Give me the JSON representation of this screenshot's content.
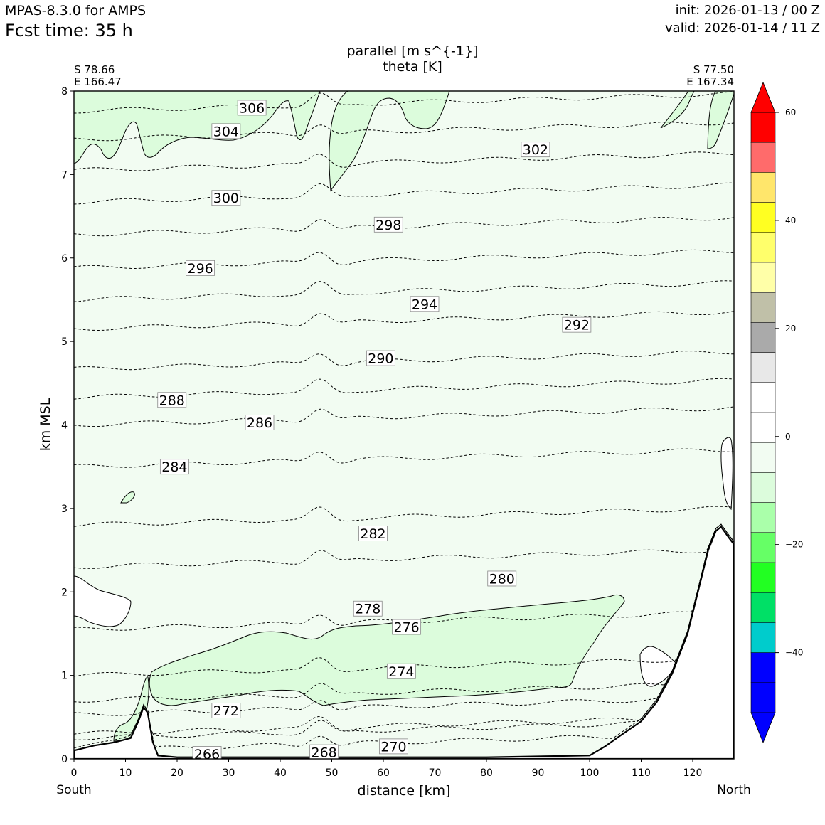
{
  "header": {
    "model": "MPAS-8.3.0 for AMPS",
    "fcst_time": "Fcst time:   35 h",
    "init": "init: 2026-01-13 / 00 Z",
    "valid": "valid: 2026-01-14 / 11 Z"
  },
  "chart_data": {
    "type": "contour",
    "title_line1": "parallel [m s^{-1}]",
    "title_line2": "theta [K]",
    "xlabel": "distance [km]",
    "ylabel": "km MSL",
    "xlim": [
      0,
      128
    ],
    "ylim": [
      0,
      8
    ],
    "x_ticks": [
      0,
      10,
      20,
      30,
      40,
      50,
      60,
      70,
      80,
      90,
      100,
      110,
      120
    ],
    "y_ticks": [
      0,
      1,
      2,
      3,
      4,
      5,
      6,
      7,
      8
    ],
    "start_point": {
      "lat": "S 78.66",
      "lon": "E 166.47"
    },
    "end_point": {
      "lat": "S 77.50",
      "lon": "E 167.34"
    },
    "left_end_label": "South",
    "right_end_label": "North",
    "theta_isentropes": [
      {
        "value": 266,
        "y_at_start": 0.1,
        "label_x": 25.8,
        "label_y": 0.06
      },
      {
        "value": 268,
        "y_at_start": 0.25,
        "label_x": 48.5,
        "label_y": 0.08
      },
      {
        "value": 270,
        "y_at_start": 0.3,
        "label_x": 62.0,
        "label_y": 0.15
      },
      {
        "value": 272,
        "y_at_start": 0.53,
        "label_x": 29.5,
        "label_y": 0.58
      },
      {
        "value": 274,
        "y_at_start": 0.7,
        "label_x": 63.5,
        "label_y": 1.05
      },
      {
        "value": 276,
        "y_at_start": 1.0,
        "label_x": 64.5,
        "label_y": 1.58
      },
      {
        "value": 278,
        "y_at_start": 1.55,
        "label_x": 57.0,
        "label_y": 1.8
      },
      {
        "value": 280,
        "y_at_start": 2.3,
        "label_x": 83.0,
        "label_y": 2.16
      },
      {
        "value": 282,
        "y_at_start": 2.8,
        "label_x": 58.0,
        "label_y": 2.7
      },
      {
        "value": 284,
        "y_at_start": 3.5,
        "label_x": 19.5,
        "label_y": 3.5
      },
      {
        "value": 286,
        "y_at_start": 4.0,
        "label_x": 36.0,
        "label_y": 4.03
      },
      {
        "value": 288,
        "y_at_start": 4.33,
        "label_x": 19.0,
        "label_y": 4.3
      },
      {
        "value": 290,
        "y_at_start": 4.67,
        "label_x": 59.5,
        "label_y": 4.8
      },
      {
        "value": 292,
        "y_at_start": 5.15,
        "label_x": 97.5,
        "label_y": 5.2
      },
      {
        "value": 294,
        "y_at_start": 5.5,
        "label_x": 68.0,
        "label_y": 5.45
      },
      {
        "value": 296,
        "y_at_start": 5.88,
        "label_x": 24.5,
        "label_y": 5.88
      },
      {
        "value": 298,
        "y_at_start": 6.28,
        "label_x": 61.0,
        "label_y": 6.4
      },
      {
        "value": 300,
        "y_at_start": 6.67,
        "label_x": 29.5,
        "label_y": 6.72
      },
      {
        "value": 302,
        "y_at_start": 7.05,
        "label_x": 89.5,
        "label_y": 7.3
      },
      {
        "value": 304,
        "y_at_start": 7.42,
        "label_x": 29.5,
        "label_y": 7.52
      },
      {
        "value": 306,
        "y_at_start": 7.76,
        "label_x": 34.5,
        "label_y": 7.8
      }
    ],
    "terrain": [
      [
        0,
        0.1
      ],
      [
        4,
        0.16
      ],
      [
        8,
        0.2
      ],
      [
        11,
        0.25
      ],
      [
        12.5,
        0.45
      ],
      [
        13.5,
        0.62
      ],
      [
        14.3,
        0.55
      ],
      [
        15.3,
        0.2
      ],
      [
        16.3,
        0.04
      ],
      [
        20,
        0.02
      ],
      [
        40,
        0.02
      ],
      [
        60,
        0.02
      ],
      [
        80,
        0.02
      ],
      [
        100,
        0.04
      ],
      [
        103,
        0.15
      ],
      [
        106,
        0.28
      ],
      [
        110,
        0.45
      ],
      [
        113,
        0.68
      ],
      [
        116,
        1.02
      ],
      [
        119,
        1.5
      ],
      [
        121,
        2.0
      ],
      [
        123,
        2.5
      ],
      [
        124.5,
        2.73
      ],
      [
        125.5,
        2.78
      ],
      [
        127,
        2.65
      ],
      [
        128,
        2.57
      ]
    ],
    "colorbar": {
      "ticks": [
        60,
        40,
        20,
        0,
        -20,
        -40
      ],
      "tick_labels": [
        "60",
        "40",
        "20",
        "0",
        "−20",
        "−40"
      ],
      "colors": [
        "#ff0000",
        "#ff6b6b",
        "#ffe66b",
        "#ffff22",
        "#ffff6b",
        "#ffffa8",
        "#c0c0a8",
        "#aaaaaa",
        "#e8e8e8",
        "#ffffff",
        "#ffffff",
        "#f2fcf2",
        "#dcfcdc",
        "#aaffaa",
        "#66ff66",
        "#22ff22",
        "#00e066",
        "#00cccc",
        "#0000ff",
        "#0000ff"
      ],
      "over_color": "#ff0000",
      "under_color": "#0000ff"
    }
  }
}
